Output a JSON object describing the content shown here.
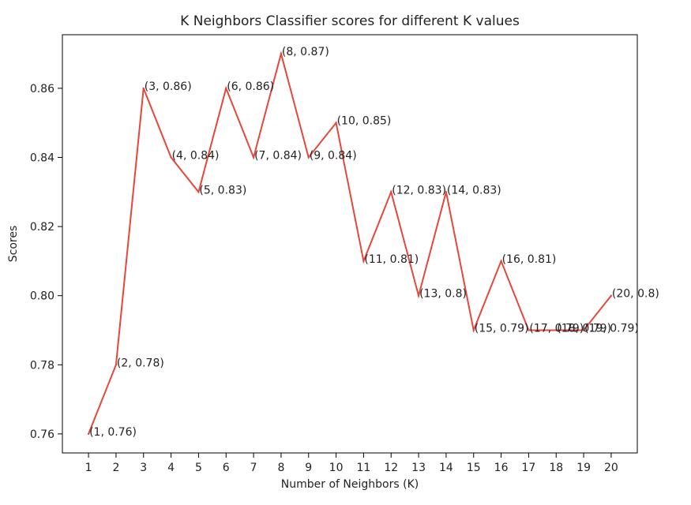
{
  "chart_data": {
    "type": "line",
    "title": "K Neighbors Classifier scores for different K values",
    "xlabel": "Number of Neighbors (K)",
    "ylabel": "Scores",
    "x": [
      1,
      2,
      3,
      4,
      5,
      6,
      7,
      8,
      9,
      10,
      11,
      12,
      13,
      14,
      15,
      16,
      17,
      18,
      19,
      20
    ],
    "y": [
      0.76,
      0.78,
      0.86,
      0.84,
      0.83,
      0.86,
      0.84,
      0.87,
      0.84,
      0.85,
      0.81,
      0.83,
      0.8,
      0.83,
      0.79,
      0.81,
      0.79,
      0.79,
      0.79,
      0.8
    ],
    "point_labels": [
      "(1, 0.76)",
      "(2, 0.78)",
      "(3, 0.86)",
      "(4, 0.84)",
      "(5, 0.83)",
      "(6, 0.86)",
      "(7, 0.84)",
      "(8, 0.87)",
      "(9, 0.84)",
      "(10, 0.85)",
      "(11, 0.81)",
      "(12, 0.83)",
      "(13, 0.8)",
      "(14, 0.83)",
      "(15, 0.79)",
      "(16, 0.81)",
      "(17, 0.79)",
      "(18, 0.79)",
      "(19, 0.79)",
      "(20, 0.8)"
    ],
    "xticks": [
      "1",
      "2",
      "3",
      "4",
      "5",
      "6",
      "7",
      "8",
      "9",
      "10",
      "11",
      "12",
      "13",
      "14",
      "15",
      "16",
      "17",
      "18",
      "19",
      "20"
    ],
    "yticks": [
      "0.76",
      "0.78",
      "0.80",
      "0.82",
      "0.84",
      "0.86"
    ],
    "ytick_values": [
      0.76,
      0.78,
      0.8,
      0.82,
      0.84,
      0.86
    ],
    "xlim": [
      0.05,
      20.95
    ],
    "ylim": [
      0.7545,
      0.8755
    ],
    "grid": false,
    "line_color": "#e8463a"
  }
}
